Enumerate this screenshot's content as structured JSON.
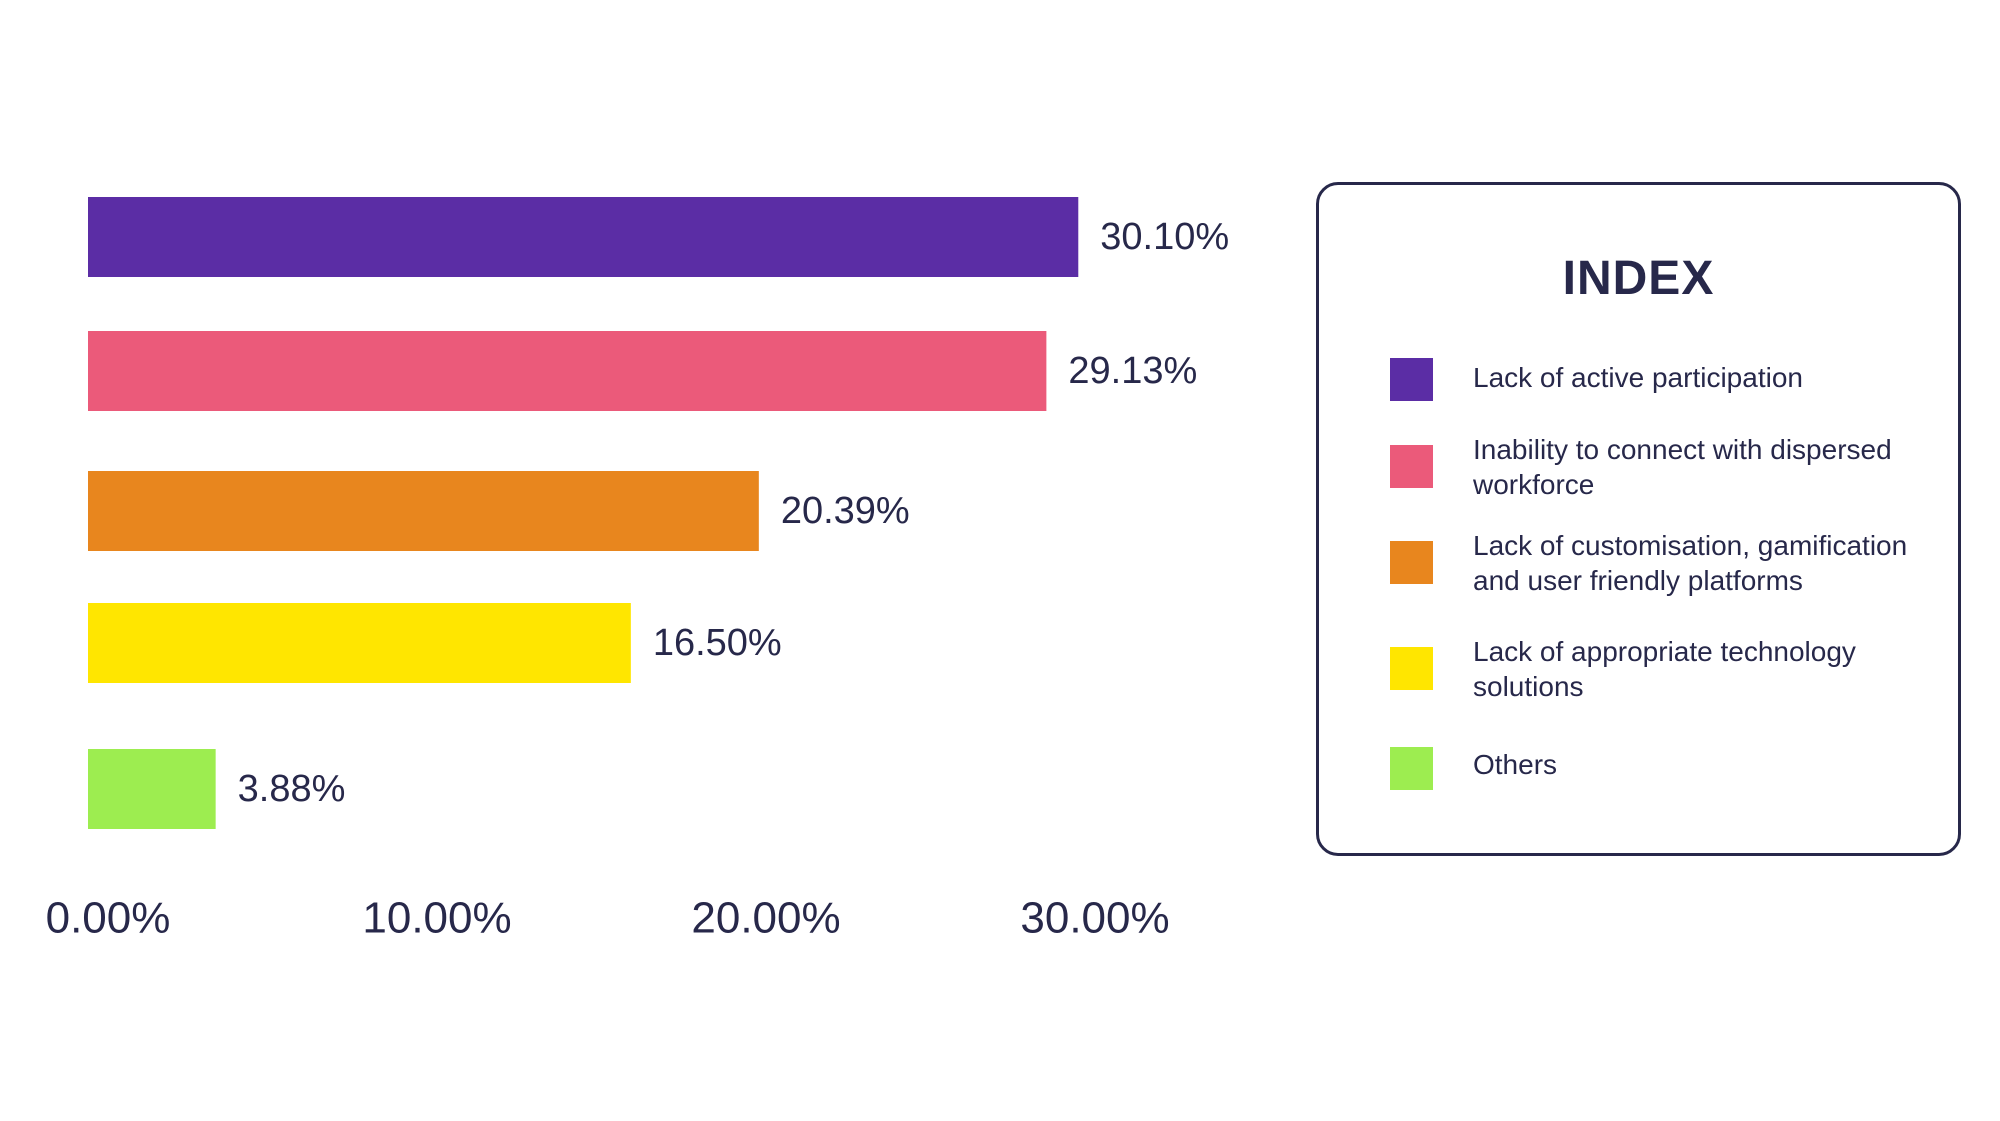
{
  "chart_data": {
    "type": "bar",
    "orientation": "horizontal",
    "categories": [
      "Lack of active participation",
      "Inability to connect with dispersed workforce",
      "Lack of customisation, gamification and user friendly platforms",
      "Lack of appropriate technology solutions",
      "Others"
    ],
    "values": [
      30.1,
      29.13,
      20.39,
      16.5,
      3.88
    ],
    "value_labels": [
      "30.10%",
      "29.13%",
      "20.39%",
      "16.50%",
      "3.88%"
    ],
    "colors": [
      "#5b2da5",
      "#eb5a7a",
      "#e8861e",
      "#ffe600",
      "#9ded50"
    ],
    "xlim": [
      0,
      33
    ],
    "x_ticks": [
      0,
      10,
      20,
      30
    ],
    "x_tick_labels": [
      "0.00%",
      "10.00%",
      "20.00%",
      "30.00%"
    ],
    "grid": false,
    "legend_position": "right"
  },
  "legend": {
    "title": "INDEX",
    "items": [
      {
        "label": "Lack of active participation",
        "color": "#5b2da5"
      },
      {
        "label": "Inability to connect with dispersed workforce",
        "color": "#eb5a7a"
      },
      {
        "label": "Lack of customisation, gamification and user friendly platforms",
        "color": "#e8861e"
      },
      {
        "label": "Lack of appropriate technology solutions",
        "color": "#ffe600"
      },
      {
        "label": "Others",
        "color": "#9ded50"
      }
    ]
  }
}
